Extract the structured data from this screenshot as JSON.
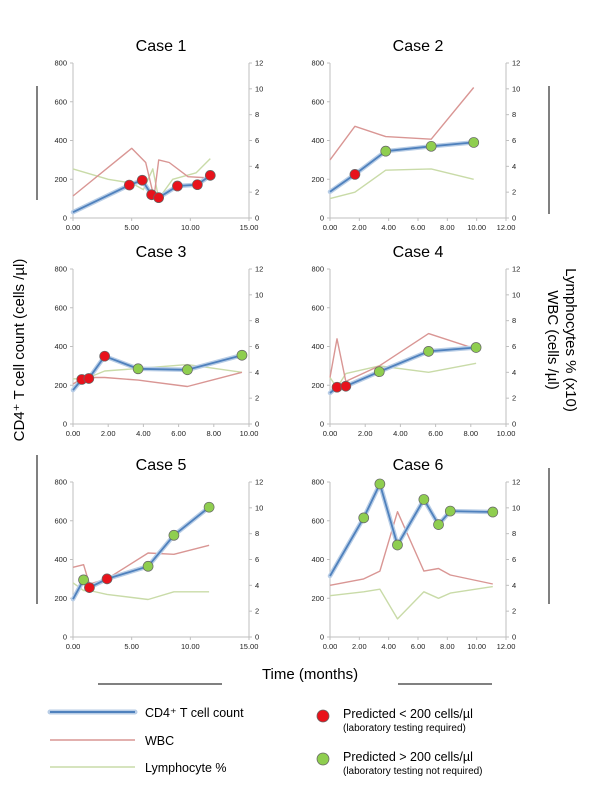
{
  "figure": {
    "y_left_title": "CD4⁺ T cell count (cells /µl)",
    "y_right_title_1": "Lymphocytes % (x10)",
    "y_right_title_2": "WBC (cells /µl)",
    "x_title": "Time (months)"
  },
  "colors": {
    "cd4": "#4f81bd",
    "cd4_halo": "#b8cde6",
    "wbc": "#d99694",
    "lymph": "#c9dba8",
    "predicted_low": "#e8121b",
    "predicted_high": "#8fce4f",
    "axis": "#bfbfbf"
  },
  "legend": {
    "cd4": "CD4⁺ T cell count",
    "wbc": "WBC",
    "lymph": "Lymphocyte %",
    "low_main": "Predicted < 200 cells/µl",
    "low_sub": "(laboratory testing required)",
    "high_main": "Predicted > 200 cells/µl",
    "high_sub": "(laboratory testing not required)"
  },
  "chart_data": [
    {
      "type": "line",
      "title": "Case 1",
      "xlim": [
        0,
        15
      ],
      "xticks": [
        "0.00",
        "5.00",
        "10.00",
        "15.00"
      ],
      "ylim": [
        0,
        800
      ],
      "yticks": [
        "0",
        "200",
        "400",
        "600",
        "800"
      ],
      "y2lim": [
        0,
        12
      ],
      "y2ticks": [
        "0",
        "2",
        "4",
        "6",
        "8",
        "10",
        "12"
      ],
      "series": [
        {
          "role": "cd4",
          "x": [
            0,
            4.8,
            5.9,
            6.7,
            7.3,
            8.9,
            10.6,
            11.7
          ],
          "y": [
            30,
            170,
            195,
            120,
            105,
            165,
            172,
            220
          ]
        },
        {
          "role": "wbc",
          "x": [
            0,
            5.0,
            6.2,
            6.9,
            7.3,
            8.2,
            9.8,
            11.7
          ],
          "y2": [
            1.7,
            5.4,
            4.3,
            1.6,
            4.5,
            4.3,
            3.2,
            3.1
          ]
        },
        {
          "role": "lymph",
          "x": [
            0,
            3.0,
            5.0,
            6.0,
            6.8,
            7.3,
            8.5,
            10.5,
            11.7
          ],
          "y2": [
            3.8,
            3.0,
            2.7,
            2.2,
            3.8,
            1.5,
            3.0,
            3.5,
            4.6
          ]
        }
      ],
      "points": [
        {
          "x": 4.8,
          "y": 170,
          "pred": "low"
        },
        {
          "x": 5.9,
          "y": 195,
          "pred": "low"
        },
        {
          "x": 6.7,
          "y": 120,
          "pred": "low"
        },
        {
          "x": 7.3,
          "y": 105,
          "pred": "low"
        },
        {
          "x": 8.9,
          "y": 165,
          "pred": "low"
        },
        {
          "x": 10.6,
          "y": 172,
          "pred": "low"
        },
        {
          "x": 11.7,
          "y": 220,
          "pred": "low"
        }
      ]
    },
    {
      "type": "line",
      "title": "Case 2",
      "xlim": [
        0,
        12
      ],
      "xticks": [
        "0.00",
        "2.00",
        "4.00",
        "6.00",
        "8.00",
        "10.00",
        "12.00"
      ],
      "ylim": [
        0,
        800
      ],
      "yticks": [
        "0",
        "200",
        "400",
        "600",
        "800"
      ],
      "y2lim": [
        0,
        12
      ],
      "y2ticks": [
        "0",
        "2",
        "4",
        "6",
        "8",
        "10",
        "12"
      ],
      "series": [
        {
          "role": "cd4",
          "x": [
            0,
            1.7,
            3.8,
            6.9,
            9.8
          ],
          "y": [
            135,
            225,
            345,
            370,
            390
          ]
        },
        {
          "role": "wbc",
          "x": [
            0,
            1.7,
            3.8,
            6.9,
            9.8
          ],
          "y2": [
            4.5,
            7.1,
            6.3,
            6.1,
            10.1
          ]
        },
        {
          "role": "lymph",
          "x": [
            0,
            1.7,
            3.8,
            6.9,
            9.8
          ],
          "y2": [
            1.5,
            2.0,
            3.7,
            3.8,
            3.0
          ]
        }
      ],
      "points": [
        {
          "x": 1.7,
          "y": 225,
          "pred": "low"
        },
        {
          "x": 3.8,
          "y": 345,
          "pred": "high"
        },
        {
          "x": 6.9,
          "y": 370,
          "pred": "high"
        },
        {
          "x": 9.8,
          "y": 390,
          "pred": "high"
        }
      ]
    },
    {
      "type": "line",
      "title": "Case 3",
      "xlim": [
        0,
        10
      ],
      "xticks": [
        "0.00",
        "2.00",
        "4.00",
        "6.00",
        "8.00",
        "10.00"
      ],
      "ylim": [
        0,
        800
      ],
      "yticks": [
        "0",
        "200",
        "400",
        "600",
        "800"
      ],
      "y2lim": [
        0,
        12
      ],
      "y2ticks": [
        "0",
        "2",
        "4",
        "6",
        "8",
        "10",
        "12"
      ],
      "series": [
        {
          "role": "cd4",
          "x": [
            0,
            0.5,
            0.9,
            1.8,
            3.7,
            6.5,
            9.6
          ],
          "y": [
            175,
            230,
            235,
            350,
            285,
            280,
            355
          ]
        },
        {
          "role": "wbc",
          "x": [
            0,
            0.5,
            0.9,
            1.8,
            3.7,
            6.5,
            9.6
          ],
          "y2": [
            3.1,
            3.5,
            3.6,
            3.6,
            3.4,
            2.9,
            4.0
          ]
        },
        {
          "role": "lymph",
          "x": [
            0,
            0.5,
            0.9,
            1.8,
            3.7,
            6.5,
            9.6
          ],
          "y2": [
            3.5,
            3.5,
            3.6,
            4.1,
            4.3,
            4.6,
            4.0
          ]
        }
      ],
      "points": [
        {
          "x": 0.5,
          "y": 230,
          "pred": "low"
        },
        {
          "x": 0.9,
          "y": 235,
          "pred": "low"
        },
        {
          "x": 1.8,
          "y": 350,
          "pred": "low"
        },
        {
          "x": 3.7,
          "y": 285,
          "pred": "high"
        },
        {
          "x": 6.5,
          "y": 280,
          "pred": "high"
        },
        {
          "x": 9.6,
          "y": 355,
          "pred": "high"
        }
      ]
    },
    {
      "type": "line",
      "title": "Case 4",
      "xlim": [
        0,
        10
      ],
      "xticks": [
        "0.00",
        "2.00",
        "4.00",
        "6.00",
        "8.00",
        "10.00"
      ],
      "ylim": [
        0,
        800
      ],
      "yticks": [
        "0",
        "200",
        "400",
        "600",
        "800"
      ],
      "y2lim": [
        0,
        12
      ],
      "y2ticks": [
        "0",
        "2",
        "4",
        "6",
        "8",
        "10",
        "12"
      ],
      "series": [
        {
          "role": "cd4",
          "x": [
            0,
            0.4,
            0.9,
            2.8,
            5.6,
            8.3
          ],
          "y": [
            160,
            190,
            195,
            270,
            375,
            395
          ]
        },
        {
          "role": "wbc",
          "x": [
            0,
            0.4,
            0.9,
            2.8,
            5.6,
            8.3
          ],
          "y2": [
            3.6,
            6.6,
            3.3,
            4.5,
            7.0,
            5.8
          ]
        },
        {
          "role": "lymph",
          "x": [
            0,
            0.4,
            0.9,
            2.8,
            5.6,
            8.3
          ],
          "y2": [
            3.6,
            2.8,
            3.9,
            4.5,
            4.0,
            4.7
          ]
        }
      ],
      "points": [
        {
          "x": 0.4,
          "y": 190,
          "pred": "low"
        },
        {
          "x": 0.9,
          "y": 195,
          "pred": "low"
        },
        {
          "x": 2.8,
          "y": 270,
          "pred": "high"
        },
        {
          "x": 5.6,
          "y": 375,
          "pred": "high"
        },
        {
          "x": 8.3,
          "y": 395,
          "pred": "high"
        }
      ]
    },
    {
      "type": "line",
      "title": "Case 5",
      "xlim": [
        0,
        15
      ],
      "xticks": [
        "0.00",
        "5.00",
        "10.00",
        "15.00"
      ],
      "ylim": [
        0,
        800
      ],
      "yticks": [
        "0",
        "200",
        "400",
        "600",
        "800"
      ],
      "y2lim": [
        0,
        12
      ],
      "y2ticks": [
        "0",
        "2",
        "4",
        "6",
        "8",
        "10",
        "12"
      ],
      "series": [
        {
          "role": "cd4",
          "x": [
            0,
            0.9,
            1.4,
            2.9,
            6.4,
            8.6,
            11.6
          ],
          "y": [
            195,
            295,
            255,
            300,
            365,
            525,
            670
          ]
        },
        {
          "role": "wbc",
          "x": [
            0,
            0.9,
            1.4,
            2.9,
            6.4,
            8.6,
            11.6
          ],
          "y2": [
            5.4,
            5.6,
            4.1,
            4.5,
            6.5,
            6.4,
            7.1
          ]
        },
        {
          "role": "lymph",
          "x": [
            0,
            0.9,
            1.4,
            2.9,
            6.4,
            8.6,
            11.6
          ],
          "y2": [
            4.2,
            3.6,
            3.6,
            3.3,
            2.9,
            3.5,
            3.5
          ]
        }
      ],
      "points": [
        {
          "x": 0.9,
          "y": 295,
          "pred": "high"
        },
        {
          "x": 1.4,
          "y": 255,
          "pred": "low"
        },
        {
          "x": 2.9,
          "y": 300,
          "pred": "low"
        },
        {
          "x": 6.4,
          "y": 365,
          "pred": "high"
        },
        {
          "x": 8.6,
          "y": 525,
          "pred": "high"
        },
        {
          "x": 11.6,
          "y": 670,
          "pred": "high"
        }
      ]
    },
    {
      "type": "line",
      "title": "Case 6",
      "xlim": [
        0,
        12
      ],
      "xticks": [
        "0.00",
        "2.00",
        "4.00",
        "6.00",
        "8.00",
        "10.00",
        "12.00"
      ],
      "ylim": [
        0,
        800
      ],
      "yticks": [
        "0",
        "200",
        "400",
        "600",
        "800"
      ],
      "y2lim": [
        0,
        12
      ],
      "y2ticks": [
        "0",
        "2",
        "4",
        "6",
        "8",
        "10",
        "12"
      ],
      "series": [
        {
          "role": "cd4",
          "x": [
            0,
            2.3,
            3.4,
            4.6,
            6.4,
            7.4,
            8.2,
            11.1
          ],
          "y": [
            315,
            615,
            790,
            475,
            710,
            580,
            650,
            645
          ]
        },
        {
          "role": "wbc",
          "x": [
            0,
            2.3,
            3.4,
            4.6,
            6.4,
            7.4,
            8.2,
            11.1
          ],
          "y2": [
            4.0,
            4.5,
            5.1,
            9.7,
            5.1,
            5.3,
            4.8,
            4.1
          ]
        },
        {
          "role": "lymph",
          "x": [
            0,
            2.3,
            3.4,
            4.6,
            6.4,
            7.4,
            8.2,
            11.1
          ],
          "y2": [
            3.2,
            3.5,
            3.7,
            1.4,
            3.5,
            3.0,
            3.4,
            3.9
          ]
        }
      ],
      "points": [
        {
          "x": 2.3,
          "y": 615,
          "pred": "high"
        },
        {
          "x": 3.4,
          "y": 790,
          "pred": "high"
        },
        {
          "x": 4.6,
          "y": 475,
          "pred": "high"
        },
        {
          "x": 6.4,
          "y": 710,
          "pred": "high"
        },
        {
          "x": 7.4,
          "y": 580,
          "pred": "high"
        },
        {
          "x": 8.2,
          "y": 650,
          "pred": "high"
        },
        {
          "x": 11.1,
          "y": 645,
          "pred": "high"
        }
      ]
    }
  ]
}
